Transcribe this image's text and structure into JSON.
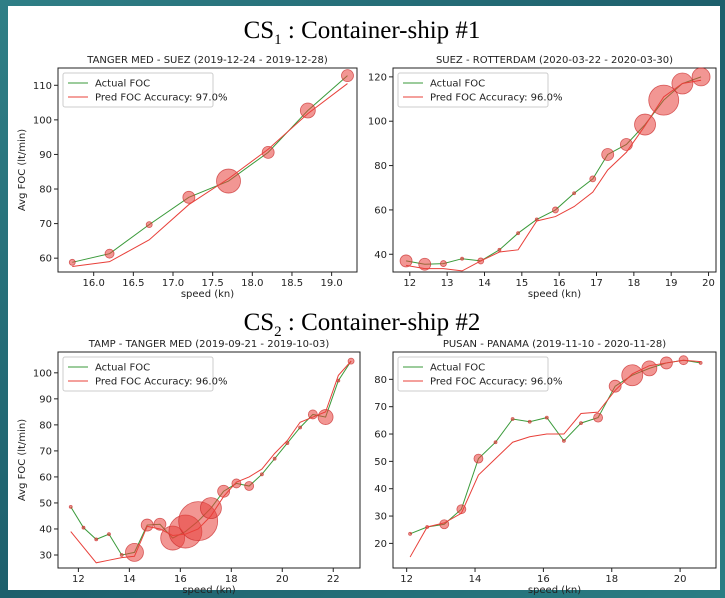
{
  "headings": [
    {
      "prefix": "CS",
      "sub": "1",
      "suffix": " : Container-ship #1"
    },
    {
      "prefix": "CS",
      "sub": "2",
      "suffix": " : Container-ship #2"
    }
  ],
  "chart_data": [
    {
      "type": "line",
      "title": "TANGER MED - SUEZ (2019-12-24 - 2019-12-28)",
      "xlabel": "speed (kn)",
      "ylabel": "Avg FOC (lt/min)",
      "x": [
        15.73,
        16.2,
        16.7,
        17.2,
        17.7,
        18.2,
        18.7,
        19.2
      ],
      "series": [
        {
          "name": "Actual FOC",
          "color": "#3a9a3a",
          "values": [
            58.8,
            61.3,
            69.7,
            77.6,
            82.3,
            90.6,
            102.7,
            112.8
          ],
          "sizes": [
            2,
            3,
            2,
            4,
            8,
            4,
            5,
            4
          ]
        },
        {
          "name": "Pred FOC Accuracy: 97.0%",
          "color": "#e8403a",
          "values": [
            57.6,
            59,
            65.3,
            75.5,
            83,
            91.5,
            101.8,
            110.5
          ]
        }
      ],
      "xlim": [
        15.55,
        19.32
      ],
      "ylim": [
        56,
        115
      ],
      "xticks": [
        {
          "value": 16,
          "label": "16.0"
        },
        {
          "value": 16.5,
          "label": "16.5"
        },
        {
          "value": 17,
          "label": "17.0"
        },
        {
          "value": 17.5,
          "label": "17.5"
        },
        {
          "value": 18,
          "label": "18.0"
        },
        {
          "value": 18.5,
          "label": "18.5"
        },
        {
          "value": 19,
          "label": "19.0"
        }
      ],
      "yticks": [
        60,
        70,
        80,
        90,
        100,
        110
      ],
      "legend": "upper left"
    },
    {
      "type": "line",
      "title": "SUEZ - ROTTERDAM (2020-03-22 - 2020-03-30)",
      "xlabel": "speed (kn)",
      "x": [
        11.9,
        12.4,
        12.9,
        13.4,
        13.9,
        14.4,
        14.9,
        15.4,
        15.9,
        16.4,
        16.9,
        17.3,
        17.8,
        18.3,
        18.8,
        19.3,
        19.8
      ],
      "series": [
        {
          "name": "Actual FOC",
          "color": "#3a9a3a",
          "values": [
            37,
            35.5,
            35.8,
            38,
            37,
            42,
            49.5,
            55.7,
            60,
            67.5,
            74,
            85,
            89.5,
            98.5,
            109.5,
            117,
            120
          ],
          "sizes": [
            4,
            4,
            2,
            1,
            2,
            1,
            1,
            1,
            2,
            1,
            2,
            4,
            4,
            7,
            10,
            7,
            6
          ]
        },
        {
          "name": "Pred FOC Accuracy: 96.0%",
          "color": "#e8403a",
          "values": [
            35,
            33.5,
            33.5,
            32.5,
            37,
            41,
            42,
            55,
            57,
            61.5,
            68,
            78,
            86,
            98,
            111,
            117,
            118.5
          ]
        }
      ],
      "xlim": [
        11.55,
        20.2
      ],
      "ylim": [
        32,
        124
      ],
      "xticks": [
        12,
        13,
        14,
        15,
        16,
        17,
        18,
        19,
        20
      ],
      "yticks": [
        40,
        60,
        80,
        100,
        120
      ],
      "legend": "upper left"
    },
    {
      "type": "line",
      "title": "TAMP - TANGER MED (2019-09-21 - 2019-10-03)",
      "xlabel": "speed (kn)",
      "ylabel": "Avg FOC (lt/min)",
      "x": [
        11.7,
        12.2,
        12.7,
        13.2,
        13.7,
        14.2,
        14.7,
        15.2,
        15.7,
        16.2,
        16.7,
        17.2,
        17.7,
        18.2,
        18.7,
        19.2,
        19.7,
        20.2,
        20.7,
        21.2,
        21.7,
        22.2,
        22.7
      ],
      "series": [
        {
          "name": "Actual FOC",
          "color": "#3a9a3a",
          "values": [
            48.5,
            40.5,
            36,
            38,
            30,
            31,
            41.5,
            41.8,
            36.5,
            39,
            43,
            48,
            54.5,
            57.5,
            56.5,
            61,
            67,
            73,
            79,
            84,
            83,
            97,
            104.5
          ],
          "sizes": [
            1,
            1,
            1,
            1,
            1,
            6,
            4,
            4,
            8,
            11,
            13,
            7,
            4,
            3,
            3,
            1,
            1,
            1,
            1,
            3,
            5,
            1,
            2
          ]
        },
        {
          "name": "Pred FOC Accuracy: 96.0%",
          "color": "#e8403a",
          "values": [
            39,
            33,
            27,
            28,
            29,
            29.5,
            41,
            40,
            37.5,
            38,
            40,
            45,
            52.5,
            58,
            60,
            63,
            69,
            74,
            81,
            83,
            85,
            99,
            104.5
          ]
        }
      ],
      "xlim": [
        11.2,
        23.05
      ],
      "ylim": [
        25,
        108
      ],
      "xticks": [
        12,
        14,
        16,
        18,
        20,
        22
      ],
      "yticks": [
        30,
        40,
        50,
        60,
        70,
        80,
        90,
        100
      ],
      "legend": "upper left"
    },
    {
      "type": "line",
      "title": "PUSAN - PANAMA (2019-11-10 - 2020-11-28)",
      "xlabel": "speed (kn)",
      "x": [
        12.1,
        12.6,
        13.1,
        13.6,
        14.1,
        14.6,
        15.1,
        15.6,
        16.1,
        16.6,
        17.1,
        17.6,
        18.1,
        18.6,
        19.1,
        19.6,
        20.1,
        20.6
      ],
      "series": [
        {
          "name": "Actual FOC",
          "color": "#3a9a3a",
          "values": [
            23.5,
            26,
            27,
            32.5,
            51,
            57,
            65.5,
            64.5,
            66,
            57.5,
            64,
            66,
            77.5,
            81.5,
            84,
            86,
            87,
            86
          ],
          "sizes": [
            1,
            1,
            3,
            3,
            3,
            1,
            1,
            1,
            1,
            1,
            1,
            3,
            4,
            7,
            5,
            4,
            3,
            1
          ]
        },
        {
          "name": "Pred FOC Accuracy: 96.0%",
          "color": "#e8403a",
          "values": [
            15,
            26,
            27.5,
            31,
            45,
            51,
            57,
            59,
            60,
            60,
            67.5,
            68,
            76,
            82,
            85,
            86,
            87,
            86.5
          ]
        }
      ],
      "xlim": [
        11.6,
        21.05
      ],
      "ylim": [
        11,
        90
      ],
      "xticks": [
        12,
        14,
        16,
        18,
        20
      ],
      "yticks": [
        20,
        30,
        40,
        50,
        60,
        70,
        80
      ],
      "legend": "upper left"
    }
  ]
}
